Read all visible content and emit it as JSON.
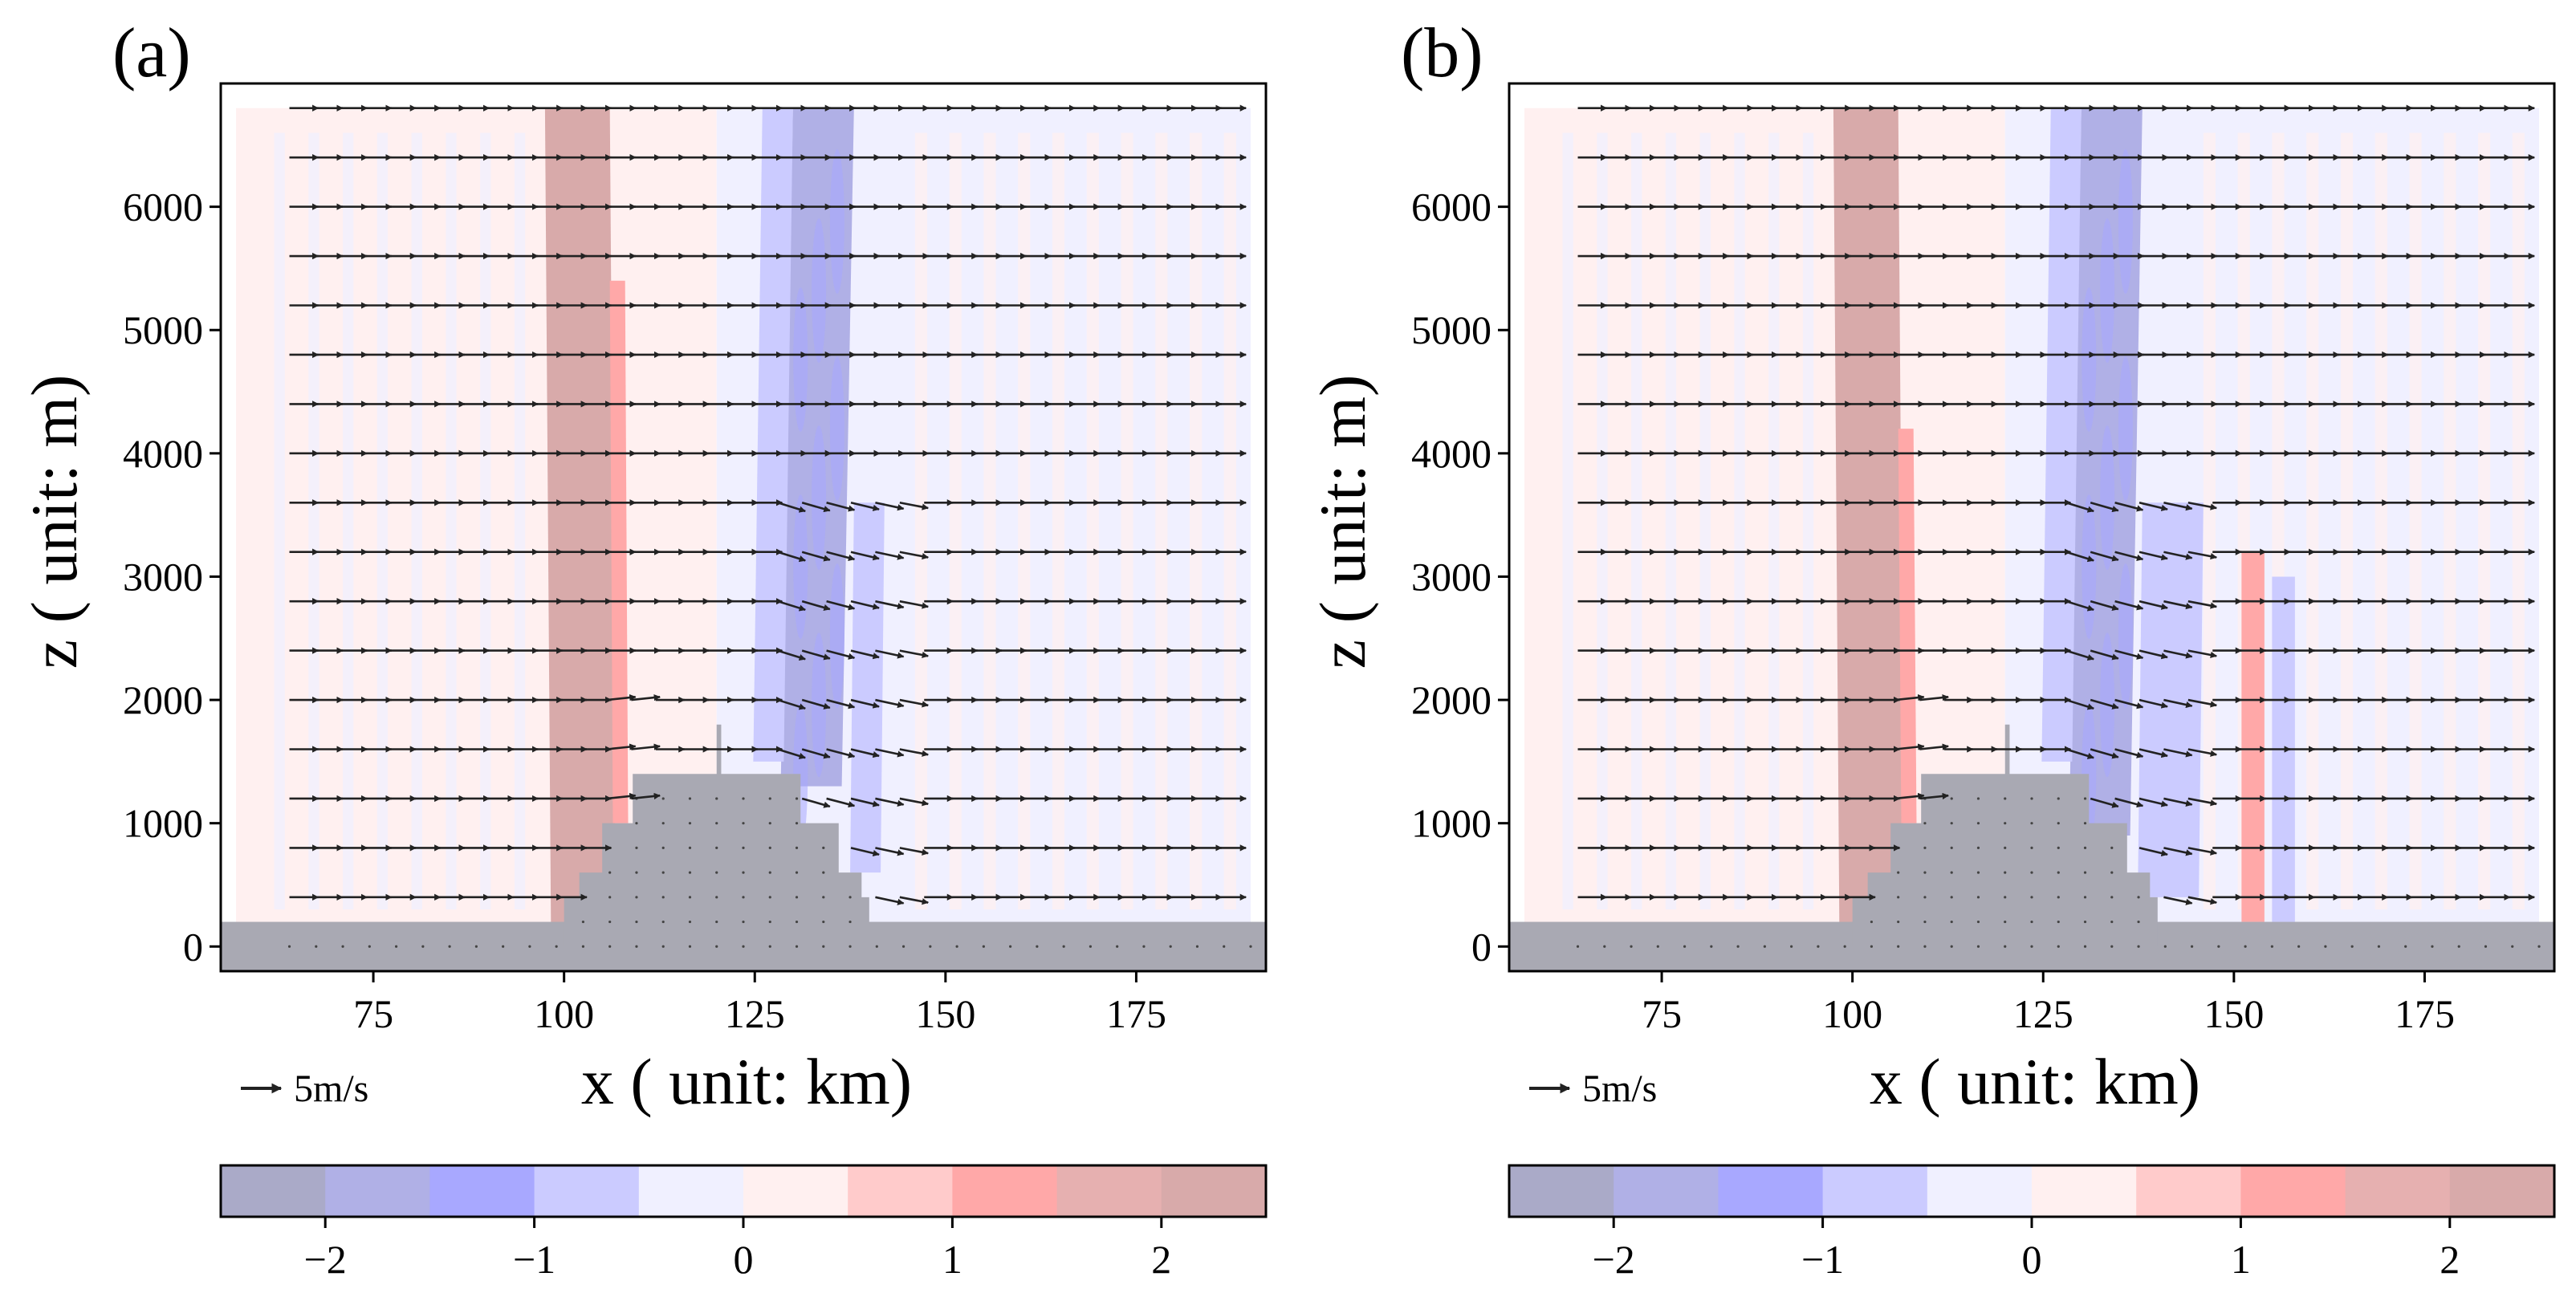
{
  "chart_data": [
    {
      "panel_label": "(a)",
      "type": "contour-quiver",
      "xlabel": "x ( unit: km)",
      "ylabel": "z ( unit: m)",
      "xlim": [
        55,
        192
      ],
      "ylim": [
        -200,
        7000
      ],
      "xticks": [
        75,
        100,
        125,
        150,
        175
      ],
      "yticks": [
        0,
        1000,
        2000,
        3000,
        4000,
        5000,
        6000
      ],
      "quiver_key": "5m/s",
      "terrain": [
        [
          55,
          0
        ],
        [
          100,
          0
        ],
        [
          100,
          400
        ],
        [
          102,
          400
        ],
        [
          102,
          600
        ],
        [
          105,
          600
        ],
        [
          105,
          1000
        ],
        [
          109,
          1000
        ],
        [
          109,
          1400
        ],
        [
          120,
          1400
        ],
        [
          120,
          1800
        ],
        [
          120.6,
          1800
        ],
        [
          120.6,
          1400
        ],
        [
          131,
          1400
        ],
        [
          131,
          1000
        ],
        [
          136,
          1000
        ],
        [
          136,
          600
        ],
        [
          139,
          600
        ],
        [
          139,
          400
        ],
        [
          140,
          400
        ],
        [
          140,
          0
        ],
        [
          192,
          0
        ]
      ],
      "bands": [
        {
          "level": 2,
          "x": [
            97.5,
            106
          ],
          "z": [
            0,
            6800
          ],
          "tilt": 0.8
        },
        {
          "level": 1,
          "x": [
            106,
            108
          ],
          "z": [
            1000,
            5400
          ],
          "tilt": 0.4
        },
        {
          "level": -2,
          "x": [
            130,
            138
          ],
          "z": [
            1300,
            6800
          ],
          "tilt": -1.6
        },
        {
          "level": -1,
          "x": [
            138,
            142
          ],
          "z": [
            600,
            3600
          ],
          "tilt": -0.5
        },
        {
          "level": -1,
          "x": [
            126,
            130
          ],
          "z": [
            1500,
            6800
          ],
          "tilt": -1.2
        }
      ]
    },
    {
      "panel_label": "(b)",
      "type": "contour-quiver",
      "xlabel": "x ( unit: km)",
      "ylabel": "z ( unit: m)",
      "xlim": [
        55,
        192
      ],
      "ylim": [
        -200,
        7000
      ],
      "xticks": [
        75,
        100,
        125,
        150,
        175
      ],
      "yticks": [
        0,
        1000,
        2000,
        3000,
        4000,
        5000,
        6000
      ],
      "quiver_key": "5m/s",
      "terrain": [
        [
          55,
          0
        ],
        [
          100,
          0
        ],
        [
          100,
          400
        ],
        [
          102,
          400
        ],
        [
          102,
          600
        ],
        [
          105,
          600
        ],
        [
          105,
          1000
        ],
        [
          109,
          1000
        ],
        [
          109,
          1400
        ],
        [
          120,
          1400
        ],
        [
          120,
          1800
        ],
        [
          120.6,
          1800
        ],
        [
          120.6,
          1400
        ],
        [
          131,
          1400
        ],
        [
          131,
          1000
        ],
        [
          136,
          1000
        ],
        [
          136,
          600
        ],
        [
          139,
          600
        ],
        [
          139,
          400
        ],
        [
          140,
          400
        ],
        [
          140,
          0
        ],
        [
          192,
          0
        ]
      ],
      "bands": [
        {
          "level": 2,
          "x": [
            97.5,
            106
          ],
          "z": [
            0,
            6800
          ],
          "tilt": 0.8
        },
        {
          "level": 1,
          "x": [
            106,
            108
          ],
          "z": [
            1000,
            4200
          ],
          "tilt": 0.4
        },
        {
          "level": -2,
          "x": [
            130,
            138
          ],
          "z": [
            900,
            6800
          ],
          "tilt": -1.6
        },
        {
          "level": -1,
          "x": [
            138,
            146
          ],
          "z": [
            400,
            3600
          ],
          "tilt": -0.6
        },
        {
          "level": -1,
          "x": [
            126,
            130
          ],
          "z": [
            1500,
            6800
          ],
          "tilt": -1.2
        },
        {
          "level": 1,
          "x": [
            151,
            154
          ],
          "z": [
            200,
            3200
          ],
          "tilt": 0
        },
        {
          "level": -1,
          "x": [
            155,
            158
          ],
          "z": [
            200,
            3000
          ],
          "tilt": 0
        }
      ]
    }
  ],
  "colorbar": {
    "levels": [
      -2.5,
      -2,
      -1.5,
      -1,
      -0.5,
      0,
      0.5,
      1,
      1.5,
      2,
      2.5
    ],
    "colors": [
      "#aaaac8",
      "#b0b0e6",
      "#a8a8ff",
      "#cbcbff",
      "#f0f0ff",
      "#fff0f0",
      "#ffcbcb",
      "#ffa8a8",
      "#e6b0b0",
      "#d8aaaa"
    ],
    "ticks": [
      -2,
      -1,
      0,
      1,
      2
    ],
    "tick_labels": [
      "−2",
      "−1",
      "0",
      "1",
      "2"
    ]
  },
  "colors": {
    "terrain": "#a9a9b3",
    "arrow": "#222222",
    "axis": "#000000"
  }
}
